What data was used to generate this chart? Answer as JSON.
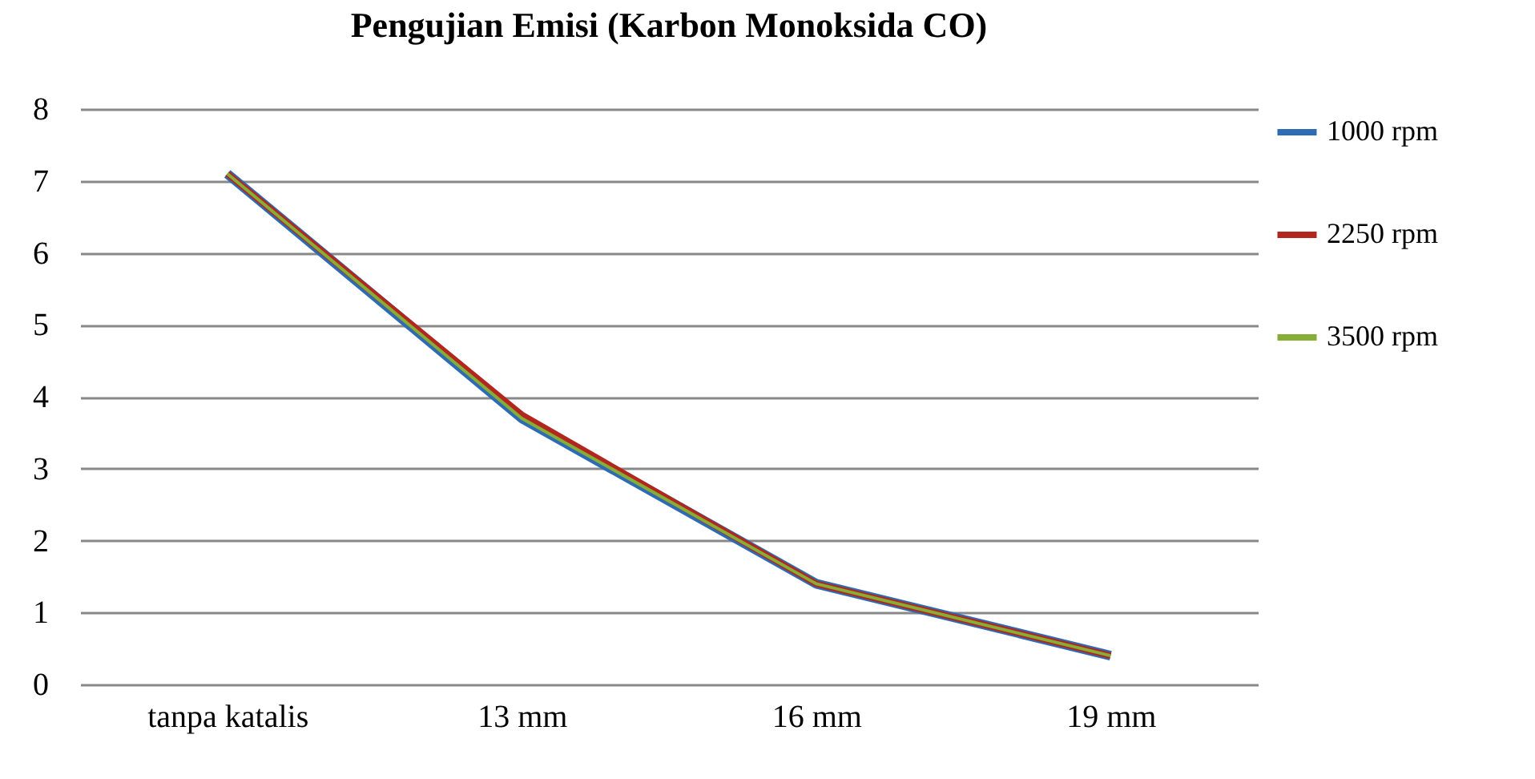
{
  "chart_data": {
    "type": "line",
    "title": "Pengujian Emisi (Karbon Monoksida CO)",
    "categories": [
      "tanpa katalis",
      "13 mm",
      "16 mm",
      "19 mm"
    ],
    "series": [
      {
        "name": "1000 rpm",
        "color": "#2e6bb5",
        "values": [
          7.1,
          3.7,
          1.4,
          0.4
        ]
      },
      {
        "name": "2250 rpm",
        "color": "#b3261e",
        "values": [
          7.1,
          3.75,
          1.4,
          0.4
        ]
      },
      {
        "name": "3500 rpm",
        "color": "#86ad35",
        "values": [
          7.1,
          3.7,
          1.4,
          0.4
        ]
      }
    ],
    "ylim": [
      0,
      8
    ],
    "yticks": [
      0,
      1,
      2,
      3,
      4,
      5,
      6,
      7,
      8
    ],
    "grid": "y",
    "legend": "right",
    "marker": "none",
    "line_style": "solid"
  }
}
